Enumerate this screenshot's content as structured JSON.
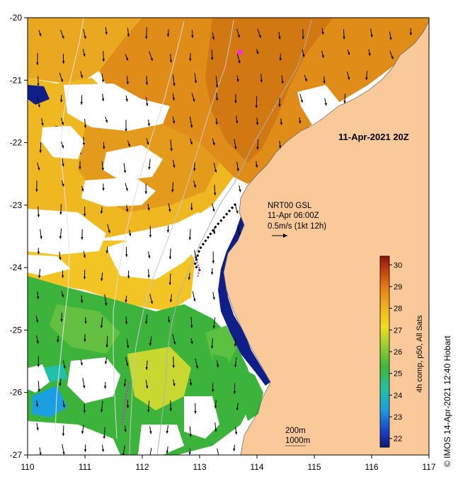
{
  "map": {
    "date_label": "11-Apr-2021 20Z",
    "wind_label": {
      "line1": "NRT00 GSL",
      "line2": "11-Apr 06:00Z",
      "line3": "0.5m/s (1kt 12h)"
    },
    "depth_labels": [
      "200m",
      "1000m"
    ],
    "x_ticks": [
      "110",
      "111",
      "112",
      "113",
      "114",
      "115",
      "116",
      "117"
    ],
    "y_ticks": [
      "-20",
      "-21",
      "-22",
      "-23",
      "-24",
      "-25",
      "-26",
      "-27"
    ],
    "lon_range": [
      110,
      117
    ],
    "lat_range": [
      -27,
      -20
    ],
    "colorbar": {
      "label": "4h comp, p50, All Sats",
      "ticks": [
        "30",
        "29",
        "28",
        "27",
        "26",
        "25",
        "24",
        "23",
        "22"
      ],
      "range": [
        21.6,
        30.4
      ]
    },
    "credit": "© IMOS 14-Apr-2021 12:40 Hobart",
    "colors": {
      "land": "#f9c99a",
      "sst_warm": "#e08c18",
      "sst_mid": "#f0b820",
      "sst_cool": "#3cb43c",
      "sst_cold": "#101e8a",
      "coast": "#a0a0a0"
    }
  }
}
